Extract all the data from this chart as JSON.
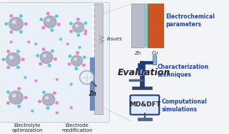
{
  "bg_color": "#f2f4f8",
  "left_panel_bg": "#eaf0f8",
  "labels": {
    "electrolyte_opt": "Electrolyte\noptimization",
    "electrode_mod": "Electrode\nmodification",
    "evaluation": "Evaluation",
    "issues": "Issues",
    "zn_label": "Zn",
    "electrochemical": "Electrochemical\nparameters",
    "characterization": "Characterization\ntechniques",
    "computational": "Computational\nsimulations",
    "md_dft": "MD&DFT",
    "zn_elec": "Zn",
    "cu_elec": "Cu"
  },
  "colors": {
    "electrode_gray": "#c8cace",
    "electrode_blue_layer": "#6080b8",
    "zn_silver": "#b8bcc8",
    "cu_orange": "#cc5522",
    "teal_layer": "#88c8c0",
    "microscope_dark": "#1a3a8a",
    "microscope_light_blue": "#88b8e0",
    "monitor_border": "#1a3a8a",
    "monitor_bg": "#e0eaf8",
    "text_blue": "#2244aa",
    "text_dark": "#222233",
    "ion_pink": "#e870c0",
    "ion_cyan": "#40c0e8",
    "sphere_gray": "#aaaabc",
    "sphere_outline": "#8888a0",
    "arrow_gray": "#8888a0",
    "magnify_bg": "#e8eef8",
    "magnify_border": "#a0a8b8",
    "line_blue": "#8aaac8"
  },
  "figsize": [
    3.21,
    1.89
  ],
  "dpi": 100
}
